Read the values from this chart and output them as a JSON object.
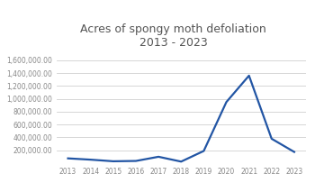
{
  "title": "Acres of spongy moth defoliation\n2013 - 2023",
  "years": [
    2013,
    2014,
    2015,
    2016,
    2017,
    2018,
    2019,
    2020,
    2021,
    2022,
    2023
  ],
  "values": [
    75000,
    55000,
    30000,
    35000,
    100000,
    25000,
    190000,
    950000,
    1360000,
    380000,
    175000
  ],
  "line_color": "#2255a4",
  "line_width": 1.6,
  "ylim": [
    0,
    1700000
  ],
  "yticks": [
    200000,
    400000,
    600000,
    800000,
    1000000,
    1200000,
    1400000,
    1600000
  ],
  "background_color": "#ffffff",
  "title_fontsize": 9,
  "tick_fontsize": 5.5,
  "tick_color": "#888888",
  "grid_color": "#d0d0d0",
  "title_color": "#555555"
}
